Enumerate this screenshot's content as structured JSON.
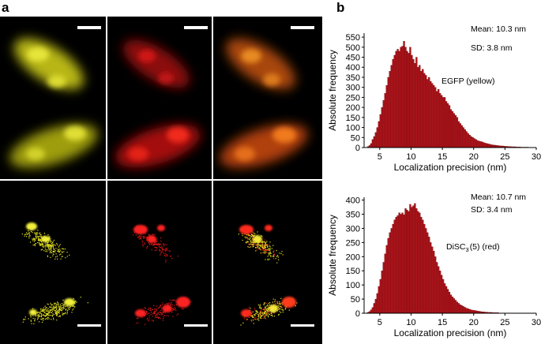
{
  "panel_a": {
    "label": "a",
    "grid": {
      "rows": 2,
      "cols": 3
    }
  },
  "panel_b": {
    "label": "b"
  },
  "chart_data": [
    {
      "type": "bar",
      "xlabel": "Localization precision (nm)",
      "ylabel": "Absolute frequency",
      "xlim": [
        2.5,
        30
      ],
      "ylim": [
        0,
        570
      ],
      "xticks": [
        5,
        10,
        15,
        20,
        25,
        30
      ],
      "yticks": [
        0,
        50,
        100,
        150,
        200,
        250,
        300,
        350,
        400,
        450,
        500,
        550
      ],
      "stats": {
        "mean": "Mean: 10.3 nm",
        "sd": "SD: 3.8 nm"
      },
      "series_label": "EGFP (yellow)",
      "bar_color": "#b0141b",
      "bin_start": 3.0,
      "bin_width": 0.25,
      "values": [
        5,
        10,
        20,
        40,
        55,
        75,
        100,
        130,
        165,
        200,
        235,
        270,
        310,
        350,
        380,
        410,
        440,
        460,
        480,
        490,
        480,
        500,
        505,
        530,
        500,
        480,
        470,
        500,
        460,
        440,
        420,
        450,
        400,
        410,
        380,
        390,
        370,
        360,
        340,
        350,
        330,
        320,
        310,
        300,
        280,
        290,
        270,
        260,
        250,
        250,
        230,
        220,
        210,
        190,
        180,
        170,
        160,
        150,
        130,
        120,
        110,
        100,
        90,
        80,
        70,
        62,
        55,
        50,
        45,
        40,
        35,
        32,
        30,
        28,
        25,
        22,
        20,
        18,
        16,
        14,
        13,
        12,
        11,
        10,
        9,
        8,
        8,
        7,
        6,
        6,
        5,
        5,
        4,
        4,
        4,
        3,
        3,
        3,
        2,
        2,
        2,
        2,
        2,
        1,
        1,
        1,
        1,
        1,
        1,
        1
      ]
    },
    {
      "type": "bar",
      "xlabel": "Localization precision (nm)",
      "ylabel": "Absolute frequency",
      "xlim": [
        2.5,
        30
      ],
      "ylim": [
        0,
        410
      ],
      "xticks": [
        5,
        10,
        15,
        20,
        25,
        30
      ],
      "yticks": [
        0,
        50,
        100,
        150,
        200,
        250,
        300,
        350,
        400
      ],
      "stats": {
        "mean": "Mean: 10.7 nm",
        "sd": "SD: 3.4 nm"
      },
      "series_label_main": "DiSC",
      "series_label_sub": "3",
      "series_label_rest": "(5) (red)",
      "bar_color": "#b0141b",
      "bin_start": 3.0,
      "bin_width": 0.25,
      "values": [
        3,
        6,
        12,
        20,
        35,
        50,
        70,
        95,
        120,
        150,
        180,
        210,
        240,
        265,
        285,
        300,
        315,
        330,
        340,
        345,
        355,
        350,
        355,
        348,
        370,
        365,
        360,
        385,
        375,
        380,
        388,
        370,
        360,
        355,
        340,
        330,
        315,
        300,
        285,
        270,
        250,
        235,
        220,
        200,
        180,
        165,
        150,
        135,
        120,
        105,
        95,
        85,
        75,
        65,
        58,
        52,
        46,
        40,
        35,
        30,
        27,
        24,
        21,
        18,
        16,
        14,
        12,
        11,
        10,
        9,
        8,
        7,
        6,
        5,
        5,
        4,
        4,
        3,
        3,
        3,
        2,
        2,
        2,
        2,
        1,
        1,
        1,
        1,
        1,
        1,
        1,
        1,
        1,
        1,
        1,
        1,
        1,
        1,
        1,
        1,
        1,
        1,
        1,
        1,
        1,
        1,
        1,
        1,
        1,
        1
      ]
    }
  ]
}
